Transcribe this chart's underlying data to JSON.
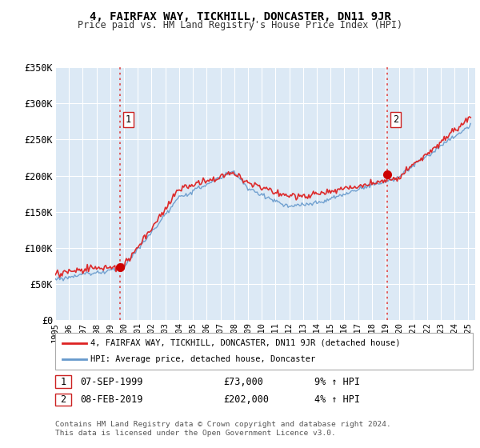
{
  "title": "4, FAIRFAX WAY, TICKHILL, DONCASTER, DN11 9JR",
  "subtitle": "Price paid vs. HM Land Registry's House Price Index (HPI)",
  "background_color": "#ffffff",
  "plot_bg_color": "#dce9f5",
  "grid_color": "#c8d8e8",
  "x_start": 1995.0,
  "x_end": 2025.5,
  "y_min": 0,
  "y_max": 350000,
  "y_ticks": [
    0,
    50000,
    100000,
    150000,
    200000,
    250000,
    300000,
    350000
  ],
  "y_tick_labels": [
    "£0",
    "£50K",
    "£100K",
    "£150K",
    "£200K",
    "£250K",
    "£300K",
    "£350K"
  ],
  "sale1_x": 1999.69,
  "sale1_y": 73000,
  "sale2_x": 2019.1,
  "sale2_y": 202000,
  "vline_color": "#dd4444",
  "marker_color": "#cc0000",
  "marker_size": 7,
  "red_line_color": "#dd2222",
  "blue_line_color": "#6699cc",
  "legend_label_red": "4, FAIRFAX WAY, TICKHILL, DONCASTER, DN11 9JR (detached house)",
  "legend_label_blue": "HPI: Average price, detached house, Doncaster",
  "table_row1": [
    "1",
    "07-SEP-1999",
    "£73,000",
    "9% ↑ HPI"
  ],
  "table_row2": [
    "2",
    "08-FEB-2019",
    "£202,000",
    "4% ↑ HPI"
  ],
  "footer": "Contains HM Land Registry data © Crown copyright and database right 2024.\nThis data is licensed under the Open Government Licence v3.0.",
  "x_tick_years": [
    1995,
    1996,
    1997,
    1998,
    1999,
    2000,
    2001,
    2002,
    2003,
    2004,
    2005,
    2006,
    2007,
    2008,
    2009,
    2010,
    2011,
    2012,
    2013,
    2014,
    2015,
    2016,
    2017,
    2018,
    2019,
    2020,
    2021,
    2022,
    2023,
    2024,
    2025
  ]
}
